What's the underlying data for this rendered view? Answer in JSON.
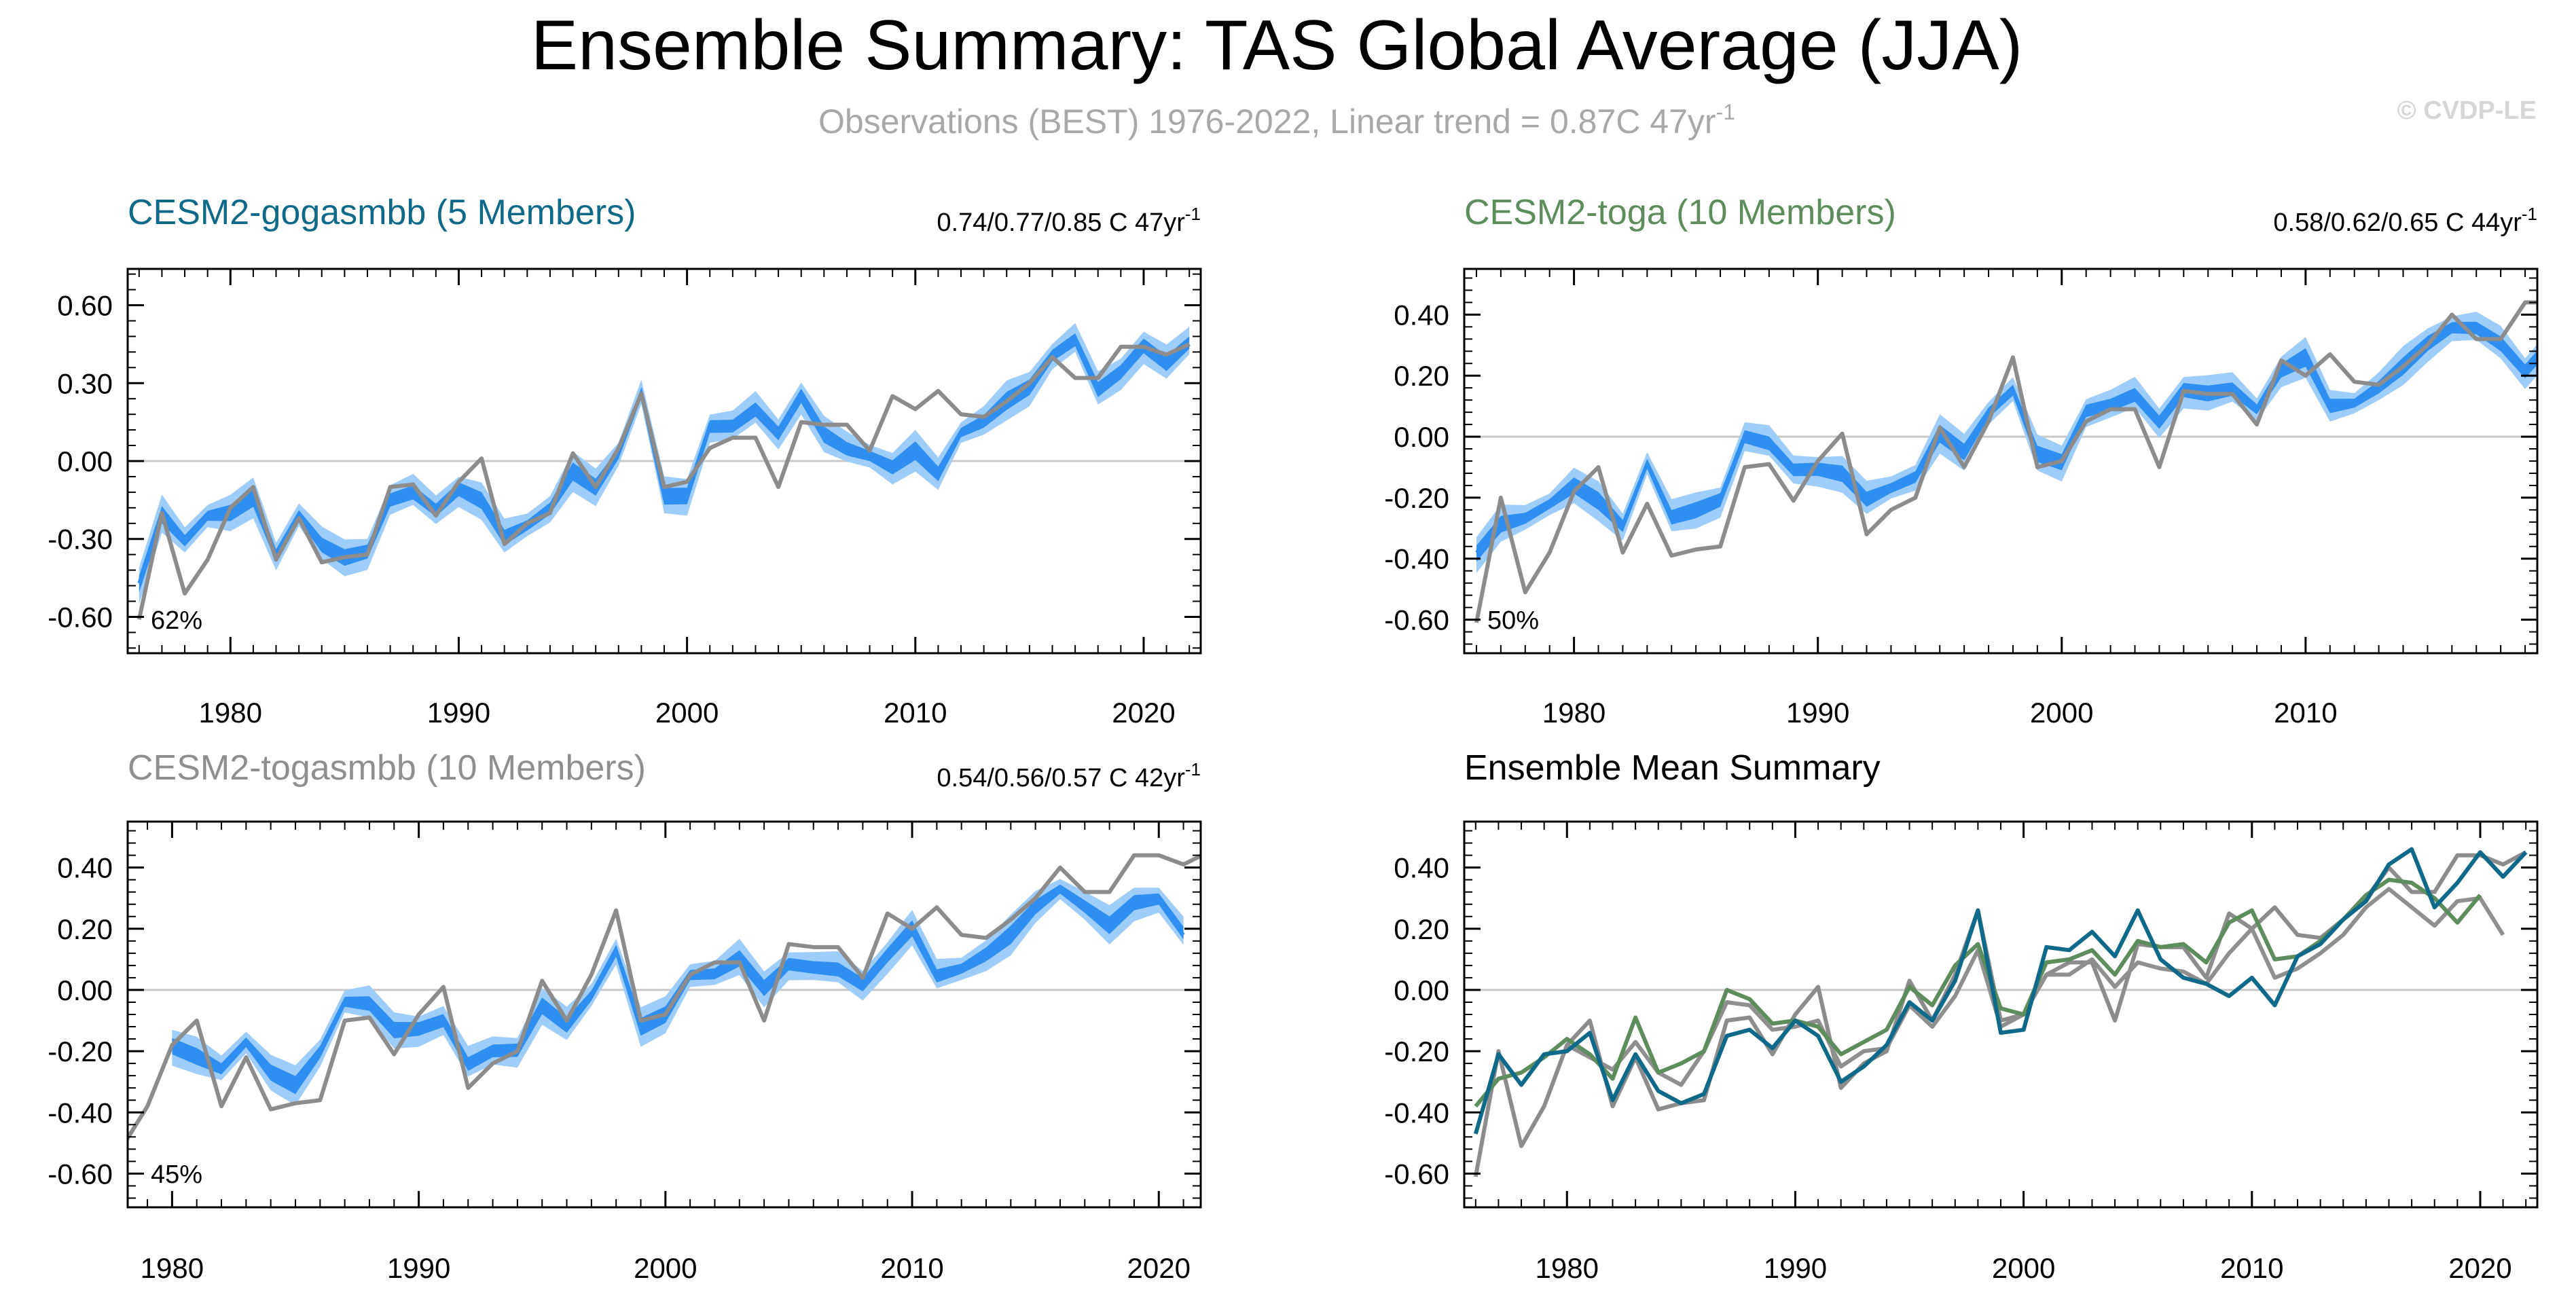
{
  "header": {
    "title": "Ensemble Summary: TAS Global Average (JJA)",
    "subtitle": "Observations (BEST) 1976-2022, Linear trend = 0.87C 47yr",
    "subtitle_sup": "-1",
    "copyright": "© CVDP-LE"
  },
  "colors": {
    "obs": "#8c8c8c",
    "band_outer": "#9fcdfa",
    "band_inner": "#2e8ff0",
    "gogasmbb": "#0f6a8a",
    "toga": "#5d8c5d",
    "togasmbb": "#8f8f8f",
    "zero_line": "#c8c8c8"
  },
  "obs_years": [
    1976,
    1977,
    1978,
    1979,
    1980,
    1981,
    1982,
    1983,
    1984,
    1985,
    1986,
    1987,
    1988,
    1989,
    1990,
    1991,
    1992,
    1993,
    1994,
    1995,
    1996,
    1997,
    1998,
    1999,
    2000,
    2001,
    2002,
    2003,
    2004,
    2005,
    2006,
    2007,
    2008,
    2009,
    2010,
    2011,
    2012,
    2013,
    2014,
    2015,
    2016,
    2017,
    2018,
    2019,
    2020,
    2021,
    2022
  ],
  "obs_values": [
    -0.61,
    -0.2,
    -0.51,
    -0.38,
    -0.18,
    -0.1,
    -0.38,
    -0.22,
    -0.39,
    -0.37,
    -0.36,
    -0.1,
    -0.09,
    -0.21,
    -0.08,
    0.01,
    -0.32,
    -0.24,
    -0.2,
    0.03,
    -0.1,
    0.05,
    0.26,
    -0.1,
    -0.08,
    0.05,
    0.09,
    0.09,
    -0.1,
    0.15,
    0.14,
    0.14,
    0.04,
    0.25,
    0.2,
    0.27,
    0.18,
    0.17,
    0.23,
    0.3,
    0.4,
    0.32,
    0.32,
    0.44,
    0.44,
    0.41,
    0.45
  ],
  "chart_data": [
    {
      "id": "gogasmbb",
      "type": "area",
      "title": "CESM2-gogasmbb (5 Members)",
      "trend_prefix": "0.74/0.77/0.85 C 47yr",
      "trend_sup": "-1",
      "percent_label": "62%",
      "ylim": [
        -0.74,
        0.74
      ],
      "yticks": [
        -0.6,
        -0.3,
        0.0,
        0.3,
        0.6
      ],
      "ytick_labels": [
        "-0.60",
        "-0.30",
        "0.00",
        "0.30",
        "0.60"
      ],
      "xlim": [
        1975.5,
        2022.5
      ],
      "xticks": [
        1980,
        1990,
        2000,
        2010,
        2020
      ],
      "xtick_labels": [
        "1980",
        "1990",
        "2000",
        "2010",
        "2020"
      ],
      "year_start": 1976,
      "mean": [
        -0.47,
        -0.21,
        -0.31,
        -0.21,
        -0.2,
        -0.14,
        -0.36,
        -0.21,
        -0.33,
        -0.37,
        -0.34,
        -0.15,
        -0.13,
        -0.19,
        -0.1,
        -0.15,
        -0.3,
        -0.25,
        -0.18,
        -0.04,
        -0.1,
        0.03,
        0.26,
        -0.14,
        -0.13,
        0.14,
        0.13,
        0.19,
        0.11,
        0.26,
        0.1,
        0.04,
        0.02,
        -0.02,
        0.04,
        -0.05,
        0.11,
        0.15,
        0.23,
        0.29,
        0.41,
        0.46,
        0.27,
        0.35,
        0.45,
        0.37,
        0.45
      ],
      "spread": 0.06,
      "obs_until": 2022
    },
    {
      "id": "toga",
      "type": "area",
      "title": "CESM2-toga (10 Members)",
      "trend_prefix": "0.58/0.62/0.65 C 44yr",
      "trend_sup": "-1",
      "percent_label": "50%",
      "ylim": [
        -0.71,
        0.55
      ],
      "yticks": [
        -0.6,
        -0.4,
        -0.2,
        0.0,
        0.2,
        0.4
      ],
      "ytick_labels": [
        "-0.60",
        "-0.40",
        "-0.20",
        "0.00",
        "0.20",
        "0.40"
      ],
      "xlim": [
        1975.5,
        2019.5
      ],
      "xticks": [
        1980,
        1990,
        2000,
        2010
      ],
      "xtick_labels": [
        "1980",
        "1990",
        "2000",
        "2010"
      ],
      "year_start": 1976,
      "mean": [
        -0.38,
        -0.29,
        -0.27,
        -0.22,
        -0.16,
        -0.21,
        -0.29,
        -0.09,
        -0.27,
        -0.24,
        -0.2,
        0.0,
        -0.03,
        -0.11,
        -0.1,
        -0.12,
        -0.21,
        -0.17,
        -0.13,
        0.01,
        -0.05,
        0.08,
        0.15,
        -0.06,
        -0.08,
        0.09,
        0.1,
        0.13,
        0.05,
        0.16,
        0.14,
        0.15,
        0.09,
        0.22,
        0.26,
        0.1,
        0.11,
        0.16,
        0.23,
        0.31,
        0.36,
        0.35,
        0.3,
        0.22,
        0.31
      ],
      "spread": 0.05,
      "obs_until": 2022
    },
    {
      "id": "togasmbb",
      "type": "area",
      "title": "CESM2-togasmbb (10 Members)",
      "trend_prefix": "0.54/0.56/0.57 C 42yr",
      "trend_sup": "-1",
      "percent_label": "45%",
      "ylim": [
        -0.71,
        0.55
      ],
      "yticks": [
        -0.6,
        -0.4,
        -0.2,
        0.0,
        0.2,
        0.4
      ],
      "ytick_labels": [
        "-0.60",
        "-0.40",
        "-0.20",
        "0.00",
        "0.20",
        "0.40"
      ],
      "xlim": [
        1978.2,
        2021.7
      ],
      "xticks": [
        1980,
        1990,
        2000,
        2010,
        2020
      ],
      "xtick_labels": [
        "1980",
        "1990",
        "2000",
        "2010",
        "2020"
      ],
      "year_start": 1980,
      "mean": [
        -0.18,
        -0.22,
        -0.26,
        -0.17,
        -0.27,
        -0.31,
        -0.2,
        -0.04,
        -0.05,
        -0.13,
        -0.12,
        -0.1,
        -0.25,
        -0.2,
        -0.19,
        -0.05,
        -0.12,
        -0.02,
        0.13,
        -0.12,
        -0.08,
        0.05,
        0.05,
        0.1,
        0.01,
        0.09,
        0.07,
        0.06,
        0.02,
        0.12,
        0.2,
        0.04,
        0.07,
        0.12,
        0.18,
        0.27,
        0.33,
        0.27,
        0.21,
        0.29,
        0.3,
        0.18
      ],
      "spread": 0.05,
      "obs_until": 2022
    },
    {
      "id": "ensmean",
      "type": "line",
      "title": "Ensemble Mean Summary",
      "ylim": [
        -0.71,
        0.55
      ],
      "yticks": [
        -0.6,
        -0.4,
        -0.2,
        0.0,
        0.2,
        0.4
      ],
      "ytick_labels": [
        "-0.60",
        "-0.40",
        "-0.20",
        "0.00",
        "0.20",
        "0.40"
      ],
      "xlim": [
        1975.5,
        2022.5
      ],
      "xticks": [
        1980,
        1990,
        2000,
        2010,
        2020
      ],
      "xtick_labels": [
        "1980",
        "1990",
        "2000",
        "2010",
        "2020"
      ],
      "lines": [
        {
          "name": "togasmbb",
          "year_start": 1980,
          "color_key": "togasmbb"
        },
        {
          "name": "toga",
          "year_start": 1976,
          "color_key": "toga"
        },
        {
          "name": "gogasmbb",
          "year_start": 1976,
          "color_key": "gogasmbb"
        }
      ]
    }
  ]
}
